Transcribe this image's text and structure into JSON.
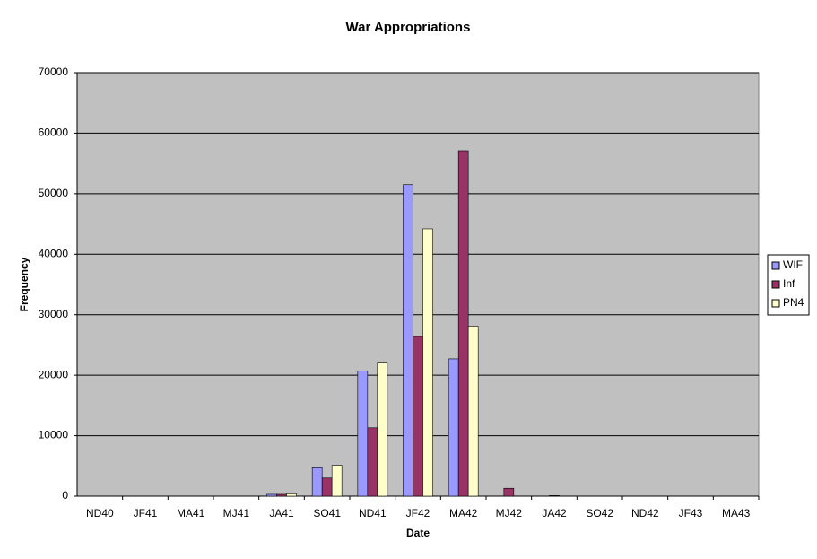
{
  "chart_data": {
    "type": "bar",
    "title": "War Appropriations",
    "x_label": "Date",
    "y_label": "Frequency",
    "categories": [
      "ND40",
      "JF41",
      "MA41",
      "MJ41",
      "JA41",
      "SO41",
      "ND41",
      "JF42",
      "MA42",
      "MJ42",
      "JA42",
      "SO42",
      "ND42",
      "JF43",
      "MA43"
    ],
    "series": [
      {
        "name": "WIF",
        "color": "#9999ff",
        "values": [
          0,
          0,
          0,
          0,
          300,
          4700,
          20700,
          51500,
          22700,
          0,
          0,
          0,
          0,
          0,
          0
        ]
      },
      {
        "name": "Inf",
        "color": "#993366",
        "values": [
          0,
          0,
          0,
          0,
          300,
          3000,
          11300,
          26400,
          57100,
          1300,
          100,
          0,
          0,
          0,
          0
        ]
      },
      {
        "name": "PN4",
        "color": "#ffffcc",
        "values": [
          0,
          0,
          0,
          0,
          400,
          5100,
          22000,
          44200,
          28100,
          0,
          0,
          0,
          0,
          0,
          0
        ]
      }
    ],
    "ylim": [
      0,
      70000
    ],
    "yticks": [
      0,
      10000,
      20000,
      30000,
      40000,
      50000,
      60000,
      70000
    ],
    "grid": true,
    "legend": "right",
    "background": "#c0c0c0"
  }
}
